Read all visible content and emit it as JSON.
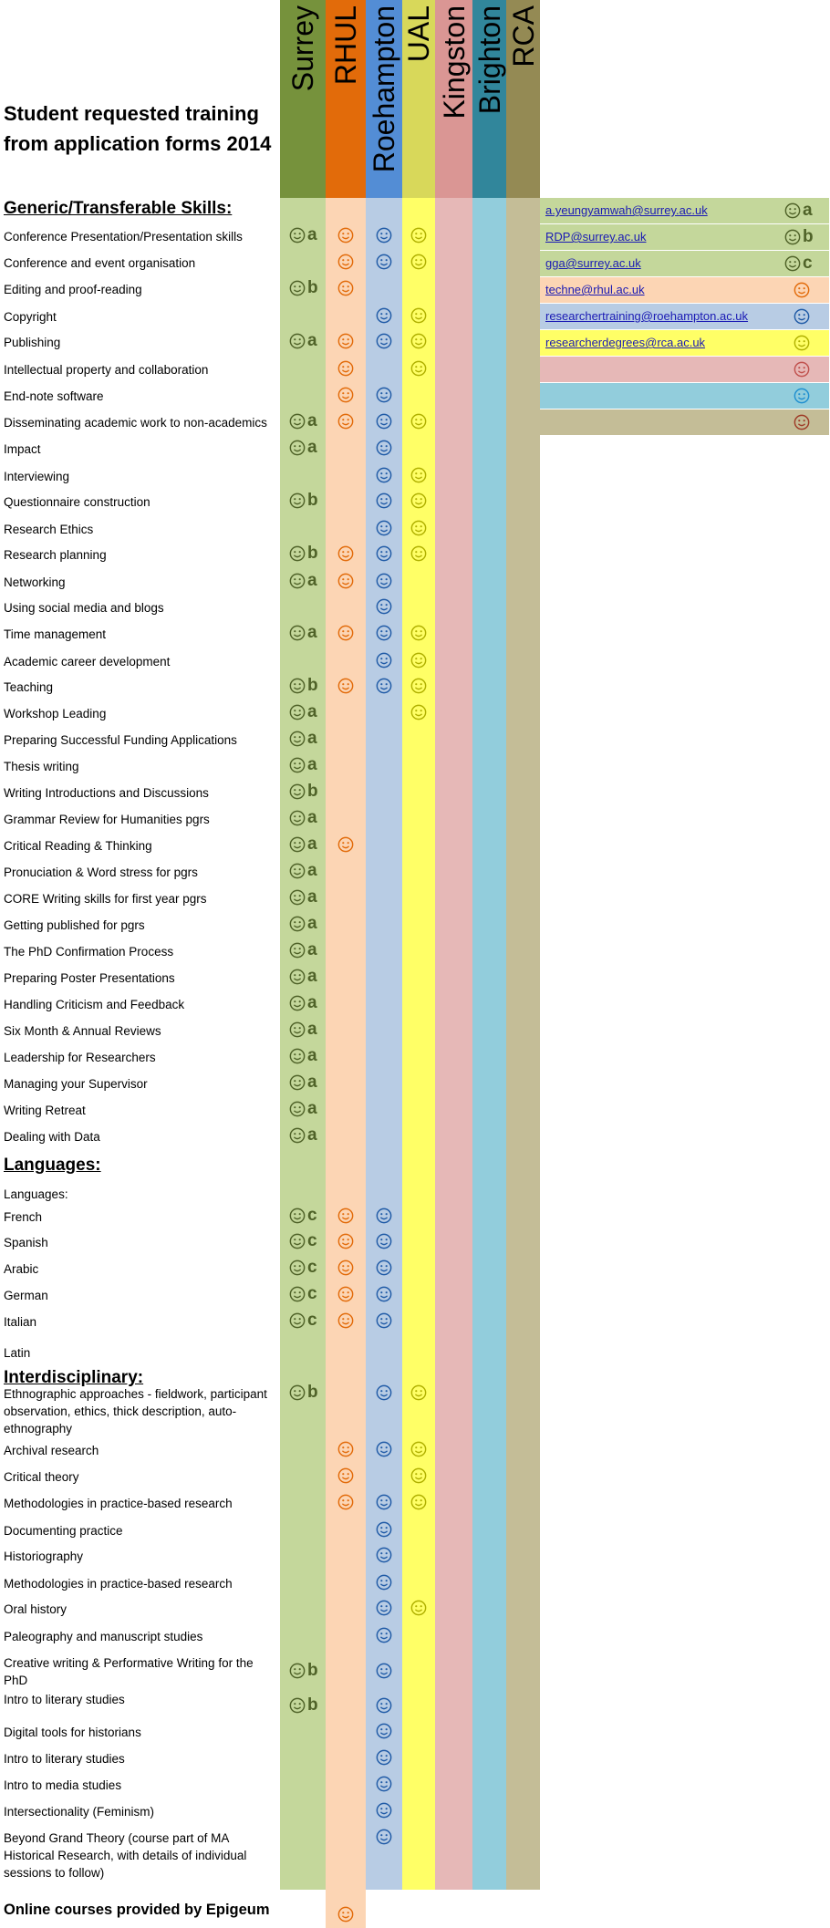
{
  "title": "Student requested training from application forms 2014",
  "institutions": [
    {
      "name": "Surrey",
      "header_color": "#76923c",
      "band_color": "#c4d79b",
      "icon_color": "#4f6228"
    },
    {
      "name": "RHUL",
      "header_color": "#e26b0a",
      "band_color": "#fcd5b4",
      "icon_color": "#e26b0a"
    },
    {
      "name": "Roehampton",
      "header_color": "#538dd5",
      "band_color": "#b8cce4",
      "icon_color": "#1f5aa6"
    },
    {
      "name": "UAL",
      "header_color": "#d8d85a",
      "band_color": "#ffff66",
      "icon_color": "#b0b000"
    },
    {
      "name": "Kingston",
      "header_color": "#da9694",
      "band_color": "#e6b8b7",
      "icon_color": "#c0504d"
    },
    {
      "name": "Brighton",
      "header_color": "#31869b",
      "band_color": "#92cddc",
      "icon_color": "#31869b"
    },
    {
      "name": "RCA",
      "header_color": "#948a54",
      "band_color": "#c4bd97",
      "icon_color": "#9e3a26"
    }
  ],
  "sections": {
    "generic": "Generic/Transferable Skills:",
    "languages": "Languages:",
    "interdisciplinary": "Interdisciplinary:"
  },
  "rows": [
    {
      "label": "Conference Presentation/Presentation skills",
      "marks": [
        "a",
        "x",
        "x",
        "x",
        "",
        "",
        ""
      ]
    },
    {
      "label": "Conference and event organisation",
      "marks": [
        "",
        "x",
        "x",
        "x",
        "",
        "",
        ""
      ]
    },
    {
      "label": "Editing and proof-reading",
      "marks": [
        "b",
        "x",
        "",
        "",
        "",
        "",
        ""
      ]
    },
    {
      "label": "Copyright",
      "marks": [
        "",
        "",
        "x",
        "x",
        "",
        "",
        ""
      ]
    },
    {
      "label": "Publishing",
      "marks": [
        "a",
        "x",
        "x",
        "x",
        "",
        "",
        ""
      ]
    },
    {
      "label": "Intellectual property and collaboration",
      "marks": [
        "",
        "x",
        "",
        "x",
        "",
        "",
        ""
      ]
    },
    {
      "label": "End-note software",
      "marks": [
        "",
        "x",
        "x",
        "",
        "",
        "",
        ""
      ]
    },
    {
      "label": "Disseminating academic work to non-academics",
      "marks": [
        "a",
        "x",
        "x",
        "x",
        "",
        "",
        ""
      ]
    },
    {
      "label": "Impact",
      "marks": [
        "a",
        "",
        "x",
        "",
        "",
        "",
        ""
      ]
    },
    {
      "label": "Interviewing",
      "marks": [
        "",
        "",
        "x",
        "x",
        "",
        "",
        ""
      ]
    },
    {
      "label": "Questionnaire construction",
      "marks": [
        "b",
        "",
        "x",
        "x",
        "",
        "",
        ""
      ]
    },
    {
      "label": "Research Ethics",
      "marks": [
        "",
        "",
        "x",
        "x",
        "",
        "",
        ""
      ]
    },
    {
      "label": "Research planning",
      "marks": [
        "b",
        "x",
        "x",
        "x",
        "",
        "",
        ""
      ]
    },
    {
      "label": "Networking",
      "marks": [
        "a",
        "x",
        "x",
        "",
        "",
        "",
        ""
      ]
    },
    {
      "label": "Using social media and blogs",
      "marks": [
        "",
        "",
        "x",
        "",
        "",
        "",
        ""
      ]
    },
    {
      "label": "Time management",
      "marks": [
        "a",
        "x",
        "x",
        "x",
        "",
        "",
        ""
      ]
    },
    {
      "label": "Academic career development",
      "marks": [
        "",
        "",
        "x",
        "x",
        "",
        "",
        ""
      ]
    },
    {
      "label": "Teaching",
      "marks": [
        "b",
        "x",
        "x",
        "x",
        "",
        "",
        ""
      ]
    },
    {
      "label": "Workshop Leading",
      "marks": [
        "a",
        "",
        "",
        "x",
        "",
        "",
        ""
      ]
    },
    {
      "label": "Preparing Successful Funding Applications",
      "marks": [
        "a",
        "",
        "",
        "",
        "",
        "",
        ""
      ]
    },
    {
      "label": "Thesis writing",
      "marks": [
        "a",
        "",
        "",
        "",
        "",
        "",
        ""
      ]
    },
    {
      "label": "Writing Introductions and Discussions",
      "marks": [
        "b",
        "",
        "",
        "",
        "",
        "",
        ""
      ]
    },
    {
      "label": "Grammar Review for Humanities pgrs",
      "marks": [
        "a",
        "",
        "",
        "",
        "",
        "",
        ""
      ]
    },
    {
      "label": "Critical Reading & Thinking",
      "marks": [
        "a",
        "x",
        "",
        "",
        "",
        "",
        ""
      ]
    },
    {
      "label": "Pronuciation & Word stress for pgrs",
      "marks": [
        "a",
        "",
        "",
        "",
        "",
        "",
        ""
      ]
    },
    {
      "label": "CORE Writing skills for first year pgrs",
      "marks": [
        "a",
        "",
        "",
        "",
        "",
        "",
        ""
      ]
    },
    {
      "label": "Getting published for pgrs",
      "marks": [
        "a",
        "",
        "",
        "",
        "",
        "",
        ""
      ]
    },
    {
      "label": "The PhD Confirmation Process",
      "marks": [
        "a",
        "",
        "",
        "",
        "",
        "",
        ""
      ]
    },
    {
      "label": "Preparing Poster Presentations",
      "marks": [
        "a",
        "",
        "",
        "",
        "",
        "",
        ""
      ]
    },
    {
      "label": "Handling Criticism and Feedback",
      "marks": [
        "a",
        "",
        "",
        "",
        "",
        "",
        ""
      ]
    },
    {
      "label": "Six Month & Annual Reviews",
      "marks": [
        "a",
        "",
        "",
        "",
        "",
        "",
        ""
      ]
    },
    {
      "label": "Leadership for Researchers",
      "marks": [
        "a",
        "",
        "",
        "",
        "",
        "",
        ""
      ]
    },
    {
      "label": "Managing your Supervisor",
      "marks": [
        "a",
        "",
        "",
        "",
        "",
        "",
        ""
      ]
    },
    {
      "label": "Writing Retreat",
      "marks": [
        "a",
        "",
        "",
        "",
        "",
        "",
        ""
      ]
    },
    {
      "label": "Dealing with Data",
      "marks": [
        "a",
        "",
        "",
        "",
        "",
        "",
        ""
      ]
    },
    {
      "label": "Languages:",
      "marks": [
        "",
        "",
        "",
        "",
        "",
        "",
        ""
      ]
    },
    {
      "label": "French",
      "marks": [
        "c",
        "x",
        "x",
        "",
        "",
        "",
        ""
      ]
    },
    {
      "label": "Spanish",
      "marks": [
        "c",
        "x",
        "x",
        "",
        "",
        "",
        ""
      ]
    },
    {
      "label": "Arabic",
      "marks": [
        "c",
        "x",
        "x",
        "",
        "",
        "",
        ""
      ]
    },
    {
      "label": "German",
      "marks": [
        "c",
        "x",
        "x",
        "",
        "",
        "",
        ""
      ]
    },
    {
      "label": "Italian",
      "marks": [
        "c",
        "x",
        "x",
        "",
        "",
        "",
        ""
      ]
    },
    {
      "label": "Latin",
      "marks": [
        "",
        "",
        "",
        "",
        "",
        "",
        ""
      ]
    },
    {
      "label": "Ethnographic approaches - fieldwork, participant observation, ethics, thick description, auto-ethnography",
      "marks": [
        "b",
        "",
        "x",
        "x",
        "",
        "",
        ""
      ]
    },
    {
      "label": "Archival research",
      "marks": [
        "",
        "x",
        "x",
        "x",
        "",
        "",
        ""
      ]
    },
    {
      "label": "Critical theory",
      "marks": [
        "",
        "x",
        "",
        "x",
        "",
        "",
        ""
      ]
    },
    {
      "label": "Methodologies in practice-based research",
      "marks": [
        "",
        "x",
        "x",
        "x",
        "",
        "",
        ""
      ]
    },
    {
      "label": "Documenting practice",
      "marks": [
        "",
        "",
        "x",
        "",
        "",
        "",
        ""
      ]
    },
    {
      "label": "Historiography",
      "marks": [
        "",
        "",
        "x",
        "",
        "",
        "",
        ""
      ]
    },
    {
      "label": "Methodologies in practice-based research",
      "marks": [
        "",
        "",
        "x",
        "",
        "",
        "",
        ""
      ]
    },
    {
      "label": "Oral history",
      "marks": [
        "",
        "",
        "x",
        "x",
        "",
        "",
        ""
      ]
    },
    {
      "label": "Paleography and manuscript studies",
      "marks": [
        "",
        "",
        "x",
        "",
        "",
        "",
        ""
      ]
    },
    {
      "label": "Creative writing & Performative Writing for the PhD",
      "marks": [
        "b",
        "",
        "x",
        "",
        "",
        "",
        ""
      ]
    },
    {
      "label": "Intro to literary studies",
      "marks": [
        "b",
        "",
        "x",
        "",
        "",
        "",
        ""
      ]
    },
    {
      "label": "Digital tools for historians",
      "marks": [
        "",
        "",
        "x",
        "",
        "",
        "",
        ""
      ]
    },
    {
      "label": "Intro to literary studies",
      "marks": [
        "",
        "",
        "x",
        "",
        "",
        "",
        ""
      ]
    },
    {
      "label": "Intro to media studies",
      "marks": [
        "",
        "",
        "x",
        "",
        "",
        "",
        ""
      ]
    },
    {
      "label": "Intersectionality (Feminism)",
      "marks": [
        "",
        "",
        "x",
        "",
        "",
        "",
        ""
      ]
    },
    {
      "label": "Beyond Grand Theory (course part of MA Historical Research, with details of individual sessions to follow)",
      "marks": [
        "",
        "",
        "x",
        "",
        "",
        "",
        ""
      ]
    }
  ],
  "contacts": [
    {
      "email": "a.yeungyamwah@surrey.ac.uk",
      "color": "#c4d79b",
      "icon_color": "#4f6228",
      "letter": "a"
    },
    {
      "email": "RDP@surrey.ac.uk",
      "color": "#c4d79b",
      "icon_color": "#4f6228",
      "letter": "b"
    },
    {
      "email": "gga@surrey.ac.uk",
      "color": "#c4d79b",
      "icon_color": "#4f6228",
      "letter": "c"
    },
    {
      "email": "techne@rhul.ac.uk",
      "color": "#fcd5b4",
      "icon_color": "#e26b0a",
      "letter": ""
    },
    {
      "email": "researchertraining@roehampton.ac.uk",
      "color": "#b8cce4",
      "icon_color": "#1f5aa6",
      "letter": ""
    },
    {
      "email": "researcherdegrees@rca.ac.uk",
      "color": "#ffff66",
      "icon_color": "#b0b000",
      "letter": ""
    },
    {
      "email": "",
      "color": "#e6b8b7",
      "icon_color": "#c0504d",
      "letter": ""
    },
    {
      "email": "",
      "color": "#92cddc",
      "icon_color": "#1f8fd0",
      "letter": ""
    },
    {
      "email": "",
      "color": "#c4bd97",
      "icon_color": "#9e3a26",
      "letter": ""
    }
  ],
  "footer": "Online courses provided by Epigeum",
  "footer_marks": [
    "",
    "x",
    "",
    "",
    "",
    "",
    ""
  ]
}
